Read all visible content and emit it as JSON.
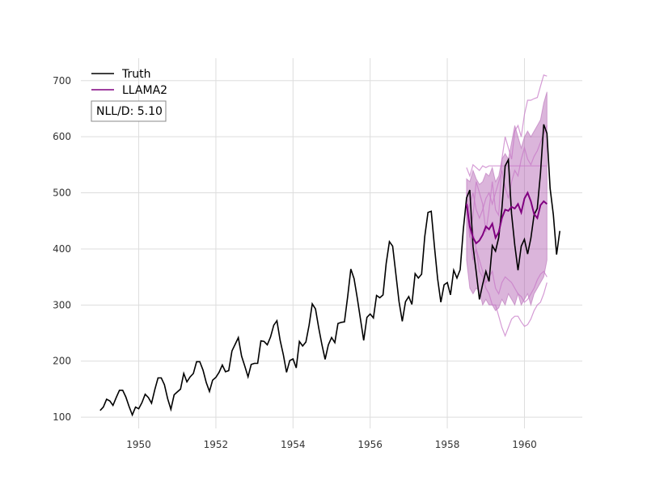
{
  "chart_data": {
    "type": "line",
    "title": "",
    "xlabel": "",
    "ylabel": "",
    "xlim": [
      1948.5,
      1961.5
    ],
    "ylim": [
      80,
      740
    ],
    "x_ticks": [
      1950,
      1952,
      1954,
      1956,
      1958,
      1960
    ],
    "x_tick_labels": [
      "1950",
      "1952",
      "1954",
      "1956",
      "1958",
      "1960"
    ],
    "y_ticks": [
      100,
      200,
      300,
      400,
      500,
      600,
      700
    ],
    "y_tick_labels": [
      "100",
      "200",
      "300",
      "400",
      "500",
      "600",
      "700"
    ],
    "grid": true,
    "legend_position": "top-left",
    "metric_label": "NLL/D: 5.10",
    "colors": {
      "truth": "#000000",
      "forecast": "#800080",
      "band": "#b05cb0",
      "sample": "#c77ac7",
      "grid": "#dddddd"
    },
    "series": [
      {
        "name": "Truth",
        "color": "#000000",
        "x_start": 1949.0,
        "x_step": 0.08333,
        "values": [
          112,
          118,
          132,
          129,
          121,
          135,
          148,
          148,
          136,
          119,
          104,
          118,
          115,
          126,
          141,
          135,
          125,
          149,
          170,
          170,
          158,
          133,
          114,
          140,
          145,
          150,
          178,
          163,
          172,
          178,
          199,
          199,
          184,
          162,
          146,
          166,
          171,
          180,
          193,
          181,
          183,
          218,
          230,
          242,
          209,
          191,
          172,
          194,
          196,
          196,
          236,
          235,
          229,
          243,
          264,
          272,
          237,
          211,
          180,
          201,
          204,
          188,
          235,
          227,
          234,
          264,
          302,
          293,
          259,
          229,
          203,
          229,
          242,
          233,
          267,
          269,
          270,
          315,
          364,
          347,
          312,
          274,
          237,
          278,
          284,
          277,
          317,
          313,
          318,
          374,
          413,
          405,
          355,
          306,
          271,
          306,
          315,
          301,
          356,
          348,
          355,
          422,
          465,
          467,
          404,
          347,
          305,
          336,
          340,
          318,
          362,
          348,
          363,
          435,
          491,
          505,
          404,
          359,
          310,
          337,
          360,
          342,
          406,
          396,
          420,
          472,
          548,
          559,
          463,
          407,
          362,
          405,
          417,
          391,
          419,
          461,
          472,
          535,
          622,
          606,
          508,
          461,
          390,
          432
        ]
      },
      {
        "name": "LLAMA2",
        "color": "#800080",
        "x_start": 1958.5,
        "x_step": 0.08333,
        "values": [
          480,
          440,
          420,
          410,
          415,
          425,
          440,
          435,
          445,
          420,
          430,
          455,
          470,
          468,
          475,
          472,
          480,
          465,
          490,
          500,
          485,
          462,
          455,
          478,
          485,
          480
        ]
      }
    ],
    "band": {
      "x_start": 1958.5,
      "x_step": 0.08333,
      "upper": [
        525,
        520,
        540,
        525,
        515,
        520,
        535,
        530,
        545,
        520,
        530,
        560,
        570,
        560,
        590,
        620,
        600,
        580,
        600,
        610,
        600,
        610,
        620,
        630,
        660,
        680
      ],
      "lower": [
        380,
        330,
        320,
        330,
        325,
        300,
        310,
        300,
        300,
        290,
        295,
        310,
        300,
        320,
        310,
        300,
        320,
        300,
        310,
        320,
        300,
        320,
        330,
        340,
        350,
        380
      ]
    },
    "samples": [
      {
        "x_start": 1958.5,
        "x_step": 0.08333,
        "values": [
          545,
          530,
          550,
          545,
          540,
          548,
          545,
          548,
          548,
          548,
          548,
          548,
          548,
          548,
          548,
          548,
          548,
          548,
          548,
          548,
          548,
          548,
          548,
          548,
          548,
          548
        ]
      },
      {
        "x_start": 1958.5,
        "x_step": 0.08333,
        "values": [
          500,
          430,
          380,
          400,
          360,
          350,
          330,
          320,
          300,
          300,
          280,
          260,
          245,
          260,
          275,
          280,
          280,
          270,
          262,
          265,
          275,
          290,
          300,
          305,
          320,
          340
        ]
      },
      {
        "x_start": 1958.5,
        "x_step": 0.08333,
        "values": [
          470,
          420,
          460,
          520,
          500,
          480,
          430,
          470,
          520,
          470,
          460,
          560,
          600,
          580,
          560,
          610,
          620,
          600,
          640,
          665,
          665,
          668,
          670,
          690,
          710,
          708
        ]
      },
      {
        "x_start": 1958.5,
        "x_step": 0.08333,
        "values": [
          490,
          460,
          430,
          400,
          380,
          360,
          340,
          350,
          360,
          330,
          320,
          340,
          350,
          345,
          340,
          330,
          320,
          315,
          305,
          310,
          320,
          330,
          345,
          355,
          360,
          350
        ]
      },
      {
        "x_start": 1958.5,
        "x_step": 0.08333,
        "values": [
          460,
          480,
          500,
          470,
          455,
          470,
          490,
          500,
          480,
          500,
          520,
          540,
          510,
          490,
          520,
          540,
          530,
          560,
          580,
          560,
          550,
          565,
          575,
          590,
          605,
          620
        ]
      }
    ]
  }
}
